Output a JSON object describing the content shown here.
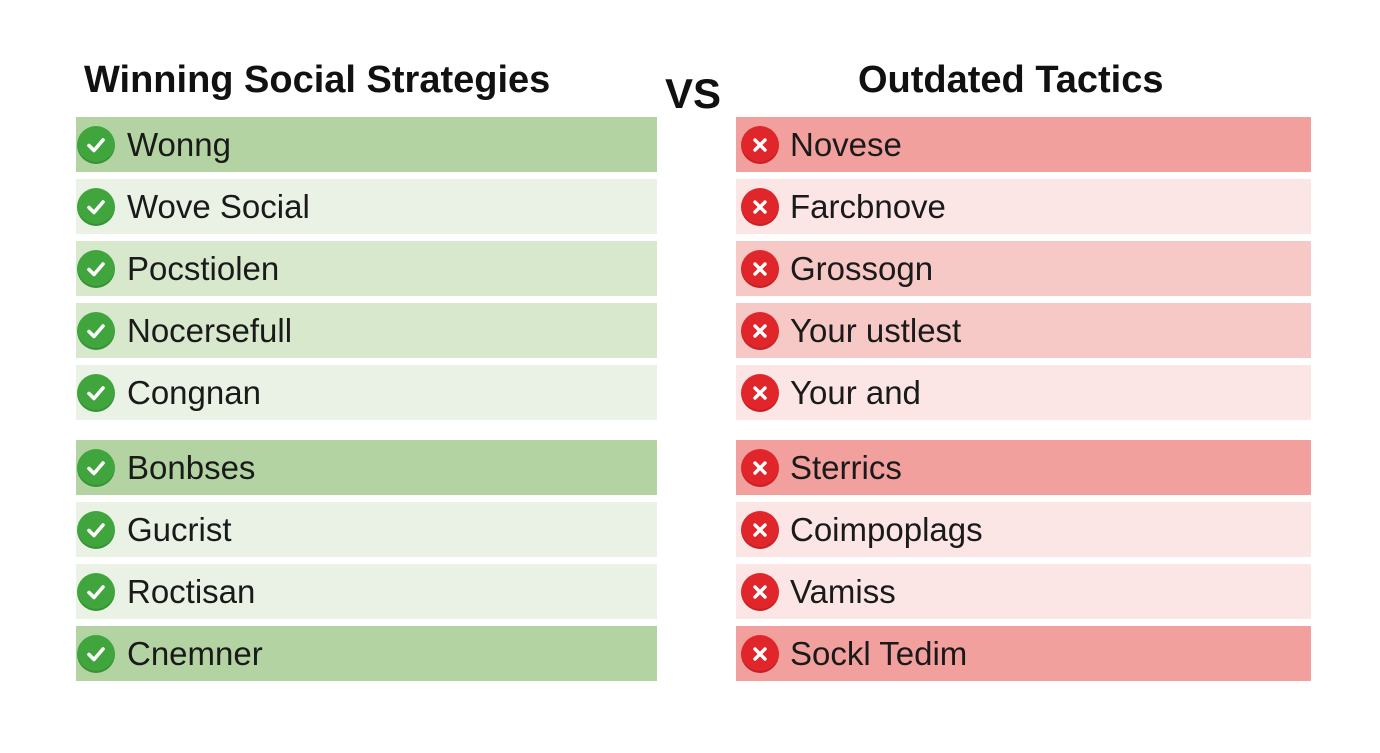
{
  "left": {
    "heading": "Winning Social Strategies",
    "icon": "check-circle-icon",
    "accent": "#3fa53c",
    "items": [
      {
        "label": "Wonng",
        "shade": "strong"
      },
      {
        "label": "Wove Social",
        "shade": "light"
      },
      {
        "label": "Pocstiolen",
        "shade": "medium"
      },
      {
        "label": "Nocersefull",
        "shade": "medium"
      },
      {
        "label": "Congnan",
        "shade": "light"
      },
      {
        "label": "Bonbses",
        "shade": "strong"
      },
      {
        "label": "Gucrist",
        "shade": "light"
      },
      {
        "label": "Roctisan",
        "shade": "light"
      },
      {
        "label": "Cnemner",
        "shade": "strong"
      }
    ]
  },
  "vs_label": "VS",
  "right": {
    "heading": "Outdated Tactics",
    "icon": "x-circle-icon",
    "accent": "#e0262a",
    "items": [
      {
        "label": "Novese",
        "shade": "strong"
      },
      {
        "label": "Farcbnove",
        "shade": "light"
      },
      {
        "label": "Grossogn",
        "shade": "medium"
      },
      {
        "label": "Your ustlest",
        "shade": "medium"
      },
      {
        "label": "Your and",
        "shade": "light"
      },
      {
        "label": "Sterrics",
        "shade": "strong"
      },
      {
        "label": "Coimpoplags",
        "shade": "light"
      },
      {
        "label": "Vamiss",
        "shade": "light"
      },
      {
        "label": "Sockl Tedim",
        "shade": "strong"
      }
    ]
  }
}
